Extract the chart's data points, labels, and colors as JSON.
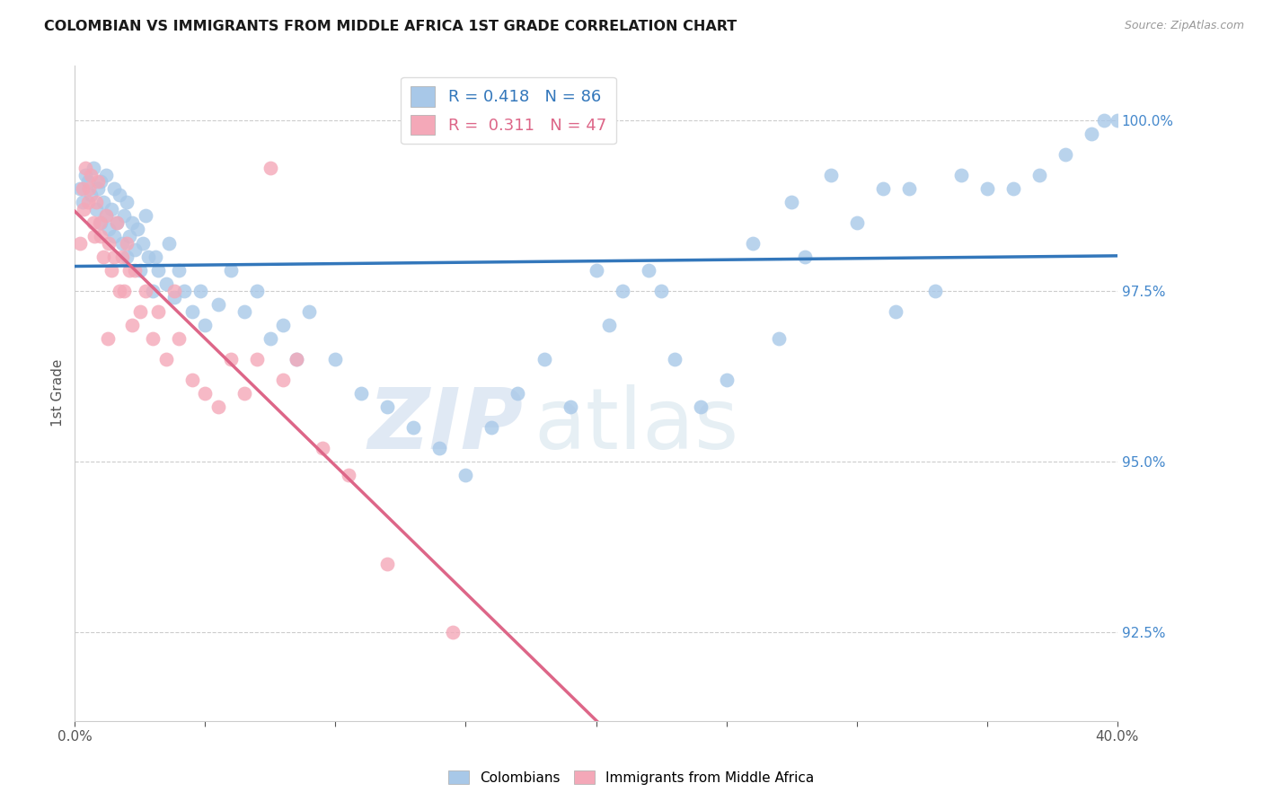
{
  "title": "COLOMBIAN VS IMMIGRANTS FROM MIDDLE AFRICA 1ST GRADE CORRELATION CHART",
  "source": "Source: ZipAtlas.com",
  "ylabel": "1st Grade",
  "xmin": 0.0,
  "xmax": 40.0,
  "ymin": 91.2,
  "ymax": 100.8,
  "yticks": [
    92.5,
    95.0,
    97.5,
    100.0
  ],
  "ytick_labels": [
    "92.5%",
    "95.0%",
    "97.5%",
    "100.0%"
  ],
  "grid_color": "#cccccc",
  "blue_color": "#a8c8e8",
  "pink_color": "#f4a8b8",
  "blue_line_color": "#3377bb",
  "pink_line_color": "#dd6688",
  "legend_blue_R": "0.418",
  "legend_blue_N": "86",
  "legend_pink_R": "0.311",
  "legend_pink_N": "47",
  "watermark_zip": "ZIP",
  "watermark_atlas": "atlas",
  "blue_scatter_x": [
    0.2,
    0.3,
    0.4,
    0.5,
    0.6,
    0.7,
    0.8,
    0.9,
    1.0,
    1.0,
    1.1,
    1.2,
    1.2,
    1.3,
    1.4,
    1.5,
    1.5,
    1.6,
    1.7,
    1.8,
    1.9,
    2.0,
    2.0,
    2.1,
    2.2,
    2.3,
    2.4,
    2.5,
    2.6,
    2.7,
    2.8,
    3.0,
    3.1,
    3.2,
    3.5,
    3.6,
    3.8,
    4.0,
    4.2,
    4.5,
    4.8,
    5.0,
    5.5,
    6.0,
    6.5,
    7.0,
    7.5,
    8.0,
    8.5,
    9.0,
    10.0,
    11.0,
    12.0,
    13.0,
    14.0,
    15.0,
    16.0,
    17.0,
    18.0,
    19.0,
    20.0,
    21.0,
    22.0,
    23.0,
    24.0,
    25.0,
    27.0,
    28.0,
    29.0,
    30.0,
    31.0,
    32.0,
    34.0,
    35.0,
    36.0,
    37.0,
    38.0,
    39.0,
    39.5,
    40.0,
    26.0,
    33.0,
    27.5,
    31.5,
    20.5,
    22.5
  ],
  "blue_scatter_y": [
    99.0,
    98.8,
    99.2,
    99.1,
    98.9,
    99.3,
    98.7,
    99.0,
    98.5,
    99.1,
    98.8,
    98.6,
    99.2,
    98.4,
    98.7,
    99.0,
    98.3,
    98.5,
    98.9,
    98.2,
    98.6,
    98.0,
    98.8,
    98.3,
    98.5,
    98.1,
    98.4,
    97.8,
    98.2,
    98.6,
    98.0,
    97.5,
    98.0,
    97.8,
    97.6,
    98.2,
    97.4,
    97.8,
    97.5,
    97.2,
    97.5,
    97.0,
    97.3,
    97.8,
    97.2,
    97.5,
    96.8,
    97.0,
    96.5,
    97.2,
    96.5,
    96.0,
    95.8,
    95.5,
    95.2,
    94.8,
    95.5,
    96.0,
    96.5,
    95.8,
    97.8,
    97.5,
    97.8,
    96.5,
    95.8,
    96.2,
    96.8,
    98.0,
    99.2,
    98.5,
    99.0,
    99.0,
    99.2,
    99.0,
    99.0,
    99.2,
    99.5,
    99.8,
    100.0,
    100.0,
    98.2,
    97.5,
    98.8,
    97.2,
    97.0,
    97.5
  ],
  "pink_scatter_x": [
    0.2,
    0.3,
    0.4,
    0.5,
    0.6,
    0.7,
    0.8,
    0.9,
    1.0,
    1.1,
    1.2,
    1.3,
    1.4,
    1.5,
    1.6,
    1.7,
    1.8,
    1.9,
    2.0,
    2.1,
    2.2,
    2.3,
    2.5,
    2.7,
    3.0,
    3.2,
    3.5,
    3.8,
    4.0,
    4.5,
    5.0,
    5.5,
    6.0,
    6.5,
    7.0,
    7.5,
    8.0,
    8.5,
    9.5,
    10.5,
    12.0,
    14.5,
    0.35,
    0.55,
    0.75,
    0.95,
    1.25
  ],
  "pink_scatter_y": [
    98.2,
    99.0,
    99.3,
    98.8,
    99.2,
    98.5,
    98.8,
    99.1,
    98.3,
    98.0,
    98.6,
    98.2,
    97.8,
    98.0,
    98.5,
    97.5,
    98.0,
    97.5,
    98.2,
    97.8,
    97.0,
    97.8,
    97.2,
    97.5,
    96.8,
    97.2,
    96.5,
    97.5,
    96.8,
    96.2,
    96.0,
    95.8,
    96.5,
    96.0,
    96.5,
    99.3,
    96.2,
    96.5,
    95.2,
    94.8,
    93.5,
    92.5,
    98.7,
    99.0,
    98.3,
    98.5,
    96.8
  ]
}
